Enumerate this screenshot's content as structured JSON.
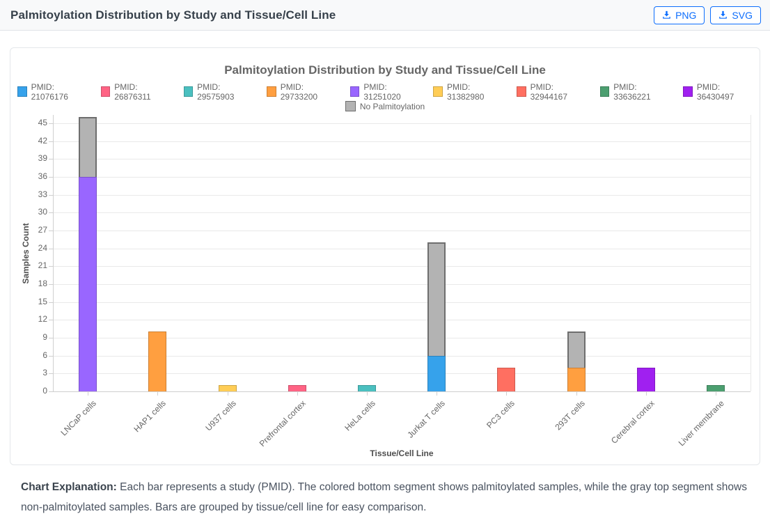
{
  "header": {
    "title": "Palmitoylation Distribution by Study and Tissue/Cell Line",
    "download_buttons": [
      {
        "label": "PNG"
      },
      {
        "label": "SVG"
      }
    ]
  },
  "chart_data": {
    "type": "bar",
    "stacked": true,
    "title": "Palmitoylation Distribution by Study and Tissue/Cell Line",
    "xlabel": "Tissue/Cell Line",
    "ylabel": "Samples Count",
    "ylim": [
      0,
      46.4
    ],
    "y_ticks": [
      0,
      3,
      6,
      9,
      12,
      15,
      18,
      21,
      24,
      27,
      30,
      33,
      36,
      39,
      42,
      45
    ],
    "grid": true,
    "legend_position": "top",
    "categories": [
      "LNCaP cells",
      "HAP1 cells",
      "U937 cells",
      "Prefrontal cortex",
      "HeLa cells",
      "Jurkat T cells",
      "PC3 cells",
      "293T cells",
      "Cerebral cortex",
      "Liver membrane"
    ],
    "series": [
      {
        "name": "PMID: 21076176",
        "color": "#36A2EB",
        "border": "#2B82BC",
        "border_width": 1,
        "values": [
          0,
          0,
          0,
          0,
          0,
          6,
          0,
          0,
          0,
          0
        ]
      },
      {
        "name": "PMID: 26876311",
        "color": "#FF6384",
        "border": "#CC4F6A",
        "border_width": 1,
        "values": [
          0,
          0,
          0,
          1,
          0,
          0,
          0,
          0,
          0,
          0
        ]
      },
      {
        "name": "PMID: 29575903",
        "color": "#4BC0C0",
        "border": "#3C9A9A",
        "border_width": 1,
        "values": [
          0,
          0,
          0,
          0,
          1,
          0,
          0,
          0,
          0,
          0
        ]
      },
      {
        "name": "PMID: 29733200",
        "color": "#FF9F40",
        "border": "#CC7F33",
        "border_width": 1,
        "values": [
          0,
          10,
          0,
          0,
          0,
          0,
          0,
          4,
          0,
          0
        ]
      },
      {
        "name": "PMID: 31251020",
        "color": "#9966FF",
        "border": "#7A52CC",
        "border_width": 1,
        "values": [
          36,
          0,
          0,
          0,
          0,
          0,
          0,
          0,
          0,
          0
        ]
      },
      {
        "name": "PMID: 31382980",
        "color": "#FFCD56",
        "border": "#CCA445",
        "border_width": 1,
        "values": [
          0,
          0,
          1,
          0,
          0,
          0,
          0,
          0,
          0,
          0
        ]
      },
      {
        "name": "PMID: 32944167",
        "color": "#FF6F61",
        "border": "#CC594E",
        "border_width": 1,
        "values": [
          0,
          0,
          0,
          0,
          0,
          0,
          4,
          0,
          0,
          0
        ]
      },
      {
        "name": "PMID: 33636221",
        "color": "#4C9F70",
        "border": "#3D7F5A",
        "border_width": 1,
        "values": [
          0,
          0,
          0,
          0,
          0,
          0,
          0,
          0,
          0,
          1
        ]
      },
      {
        "name": "PMID: 36430497",
        "color": "#A020F0",
        "border": "#801AC0",
        "border_width": 1,
        "values": [
          0,
          0,
          0,
          0,
          0,
          0,
          0,
          0,
          4,
          0
        ]
      },
      {
        "name": "No Palmitoylation",
        "color": "#B3B3B3",
        "border": "#6E6E6E",
        "border_width": 2,
        "values": [
          10,
          0,
          0,
          0,
          0,
          19,
          0,
          6,
          0,
          0
        ]
      }
    ]
  },
  "explanation": {
    "label": "Chart Explanation:",
    "text": "Each bar represents a study (PMID). The colored bottom segment shows palmitoylated samples, while the gray top segment shows non-palmitoylated samples. Bars are grouped by tissue/cell line for easy comparison."
  }
}
